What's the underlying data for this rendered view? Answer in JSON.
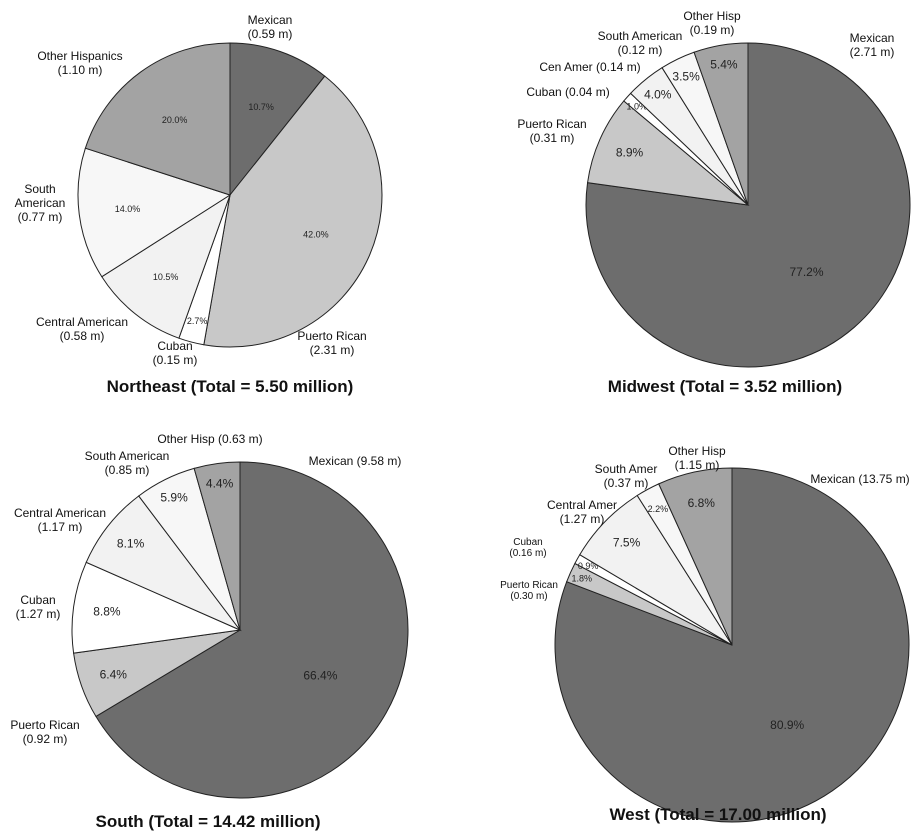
{
  "chart_data": [
    {
      "type": "pie",
      "title": "Northeast (Total = 5.50 million)",
      "slices": [
        {
          "name": "Mexican",
          "value_label": "(0.59 m)",
          "value": 0.59,
          "pct": 10.7,
          "pct_label": "10.7%",
          "color": "#6d6d6d"
        },
        {
          "name": "Puerto Rican",
          "value_label": "(2.31 m)",
          "value": 2.31,
          "pct": 42.0,
          "pct_label": "42.0%",
          "color": "#c8c8c8"
        },
        {
          "name": "Cuban",
          "value_label": "(0.15 m)",
          "value": 0.15,
          "pct": 2.7,
          "pct_label": "2.7%",
          "color": "#ffffff"
        },
        {
          "name": "Central American",
          "value_label": "(0.58 m)",
          "value": 0.58,
          "pct": 10.5,
          "pct_label": "10.5%",
          "color": "#f2f2f2"
        },
        {
          "name": "South American",
          "value_label": "(0.77 m)",
          "value": 0.77,
          "pct": 14.0,
          "pct_label": "14.0%",
          "color": "#f7f7f7"
        },
        {
          "name": "Other Hispanics",
          "value_label": "(1.10 m)",
          "value": 1.1,
          "pct": 20.0,
          "pct_label": "20.0%",
          "color": "#a3a3a3"
        }
      ]
    },
    {
      "type": "pie",
      "title": "Midwest (Total = 3.52 million)",
      "slices": [
        {
          "name": "Mexican",
          "value_label": "(2.71 m)",
          "value": 2.71,
          "pct": 77.2,
          "pct_label": "77.2%",
          "color": "#6d6d6d"
        },
        {
          "name": "Puerto Rican",
          "value_label": "(0.31 m)",
          "value": 0.31,
          "pct": 8.9,
          "pct_label": "8.9%",
          "color": "#c8c8c8"
        },
        {
          "name": "Cuban",
          "value_label": "(0.04 m)",
          "value": 0.04,
          "pct": 1.0,
          "pct_label": "1.0%",
          "color": "#ffffff"
        },
        {
          "name": "Cen Amer",
          "value_label": "(0.14 m)",
          "value": 0.14,
          "pct": 4.0,
          "pct_label": "4.0%",
          "color": "#f2f2f2"
        },
        {
          "name": "South American",
          "value_label": "(0.12 m)",
          "value": 0.12,
          "pct": 3.5,
          "pct_label": "3.5%",
          "color": "#f7f7f7"
        },
        {
          "name": "Other Hisp",
          "value_label": "(0.19 m)",
          "value": 0.19,
          "pct": 5.4,
          "pct_label": "5.4%",
          "color": "#a3a3a3"
        }
      ]
    },
    {
      "type": "pie",
      "title": "South (Total = 14.42 million)",
      "slices": [
        {
          "name": "Mexican",
          "value_label": "(9.58 m)",
          "value": 9.58,
          "pct": 66.4,
          "pct_label": "66.4%",
          "color": "#6d6d6d"
        },
        {
          "name": "Puerto Rican",
          "value_label": "(0.92 m)",
          "value": 0.92,
          "pct": 6.4,
          "pct_label": "6.4%",
          "color": "#c8c8c8"
        },
        {
          "name": "Cuban",
          "value_label": "(1.27 m)",
          "value": 1.27,
          "pct": 8.8,
          "pct_label": "8.8%",
          "color": "#ffffff"
        },
        {
          "name": "Central American",
          "value_label": "(1.17 m)",
          "value": 1.17,
          "pct": 8.1,
          "pct_label": "8.1%",
          "color": "#f2f2f2"
        },
        {
          "name": "South American",
          "value_label": "(0.85 m)",
          "value": 0.85,
          "pct": 5.9,
          "pct_label": "5.9%",
          "color": "#f7f7f7"
        },
        {
          "name": "Other Hisp",
          "value_label": "(0.63 m)",
          "value": 0.63,
          "pct": 4.4,
          "pct_label": "4.4%",
          "color": "#a3a3a3"
        }
      ]
    },
    {
      "type": "pie",
      "title": "West (Total = 17.00 million)",
      "slices": [
        {
          "name": "Mexican",
          "value_label": "(13.75 m)",
          "value": 13.75,
          "pct": 80.9,
          "pct_label": "80.9%",
          "color": "#6d6d6d"
        },
        {
          "name": "Puerto Rican",
          "value_label": "(0.30 m)",
          "value": 0.3,
          "pct": 1.8,
          "pct_label": "1.8%",
          "color": "#c8c8c8"
        },
        {
          "name": "Cuban",
          "value_label": "(0.16 m)",
          "value": 0.16,
          "pct": 0.9,
          "pct_label": "0.9%",
          "color": "#ffffff"
        },
        {
          "name": "Central Amer",
          "value_label": "(1.27 m)",
          "value": 1.27,
          "pct": 7.5,
          "pct_label": "7.5%",
          "color": "#f2f2f2"
        },
        {
          "name": "South Amer",
          "value_label": "(0.37 m)",
          "value": 0.37,
          "pct": 2.2,
          "pct_label": "2.2%",
          "color": "#f7f7f7"
        },
        {
          "name": "Other Hisp",
          "value_label": "(1.15 m)",
          "value": 1.15,
          "pct": 6.8,
          "pct_label": "6.8%",
          "color": "#a3a3a3"
        }
      ]
    }
  ]
}
